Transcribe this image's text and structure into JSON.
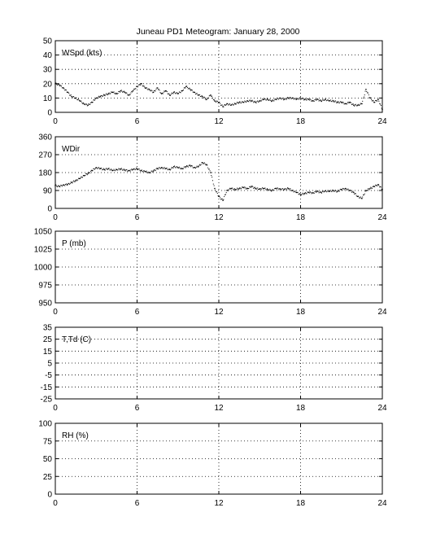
{
  "title": "Juneau PD1 Meteogram:   January 28, 2000",
  "chart_data": [
    {
      "type": "scatter",
      "label": "WSpd (kts)",
      "xlim": [
        0,
        24
      ],
      "xticks": [
        "0",
        "6",
        "12",
        "18",
        "24"
      ],
      "ylim": [
        0,
        50
      ],
      "yticks": [
        "0",
        "10",
        "20",
        "30",
        "40",
        "50"
      ],
      "grid": true,
      "series": [
        {
          "x": [
            0,
            0.3,
            0.6,
            0.9,
            1.2,
            1.5,
            1.8,
            2.1,
            2.4,
            2.7,
            3.0,
            3.3,
            3.6,
            3.9,
            4.2,
            4.5,
            4.8,
            5.1,
            5.4,
            5.7,
            6.0,
            6.3,
            6.6,
            6.9,
            7.2,
            7.5,
            7.8,
            8.1,
            8.4,
            8.7,
            9.0,
            9.3,
            9.6,
            9.9,
            10.2,
            10.5,
            10.8,
            11.1,
            11.4,
            11.7,
            12.0,
            12.3,
            12.6,
            12.9,
            13.2,
            13.5,
            13.8,
            14.1,
            14.4,
            14.7,
            15.0,
            15.3,
            15.6,
            15.9,
            16.2,
            16.5,
            16.8,
            17.1,
            17.4,
            17.7,
            18.0,
            18.3,
            18.6,
            18.9,
            19.2,
            19.5,
            19.8,
            20.1,
            20.4,
            20.7,
            21.0,
            21.3,
            21.6,
            21.9,
            22.2,
            22.5,
            22.8,
            23.1,
            23.4,
            23.7,
            24.0
          ],
          "y": [
            20,
            19,
            17,
            14,
            11,
            10,
            8,
            6,
            5,
            7,
            10,
            11,
            12,
            13,
            14,
            13,
            15,
            14,
            12,
            15,
            18,
            20,
            17,
            16,
            14,
            17,
            13,
            15,
            12,
            14,
            13,
            15,
            18,
            16,
            14,
            12,
            11,
            9,
            12,
            8,
            7,
            4,
            6,
            5,
            6,
            7,
            7,
            8,
            8,
            7,
            8,
            9,
            9,
            8,
            9,
            10,
            9,
            10,
            10,
            9,
            10,
            9,
            9,
            8,
            9,
            8,
            9,
            8,
            8,
            7,
            7,
            6,
            7,
            5,
            5,
            6,
            16,
            10,
            7,
            9,
            2
          ]
        }
      ]
    },
    {
      "type": "scatter",
      "label": "WDir",
      "xlim": [
        0,
        24
      ],
      "xticks": [
        "0",
        "6",
        "12",
        "18",
        "24"
      ],
      "ylim": [
        0,
        360
      ],
      "yticks": [
        "0",
        "90",
        "180",
        "270",
        "360"
      ],
      "grid": true,
      "series": [
        {
          "x": [
            0,
            0.3,
            0.6,
            0.9,
            1.2,
            1.5,
            1.8,
            2.1,
            2.4,
            2.7,
            3.0,
            3.3,
            3.6,
            3.9,
            4.2,
            4.5,
            4.8,
            5.1,
            5.4,
            5.7,
            6.0,
            6.3,
            6.6,
            6.9,
            7.2,
            7.5,
            7.8,
            8.1,
            8.4,
            8.7,
            9.0,
            9.3,
            9.6,
            9.9,
            10.2,
            10.5,
            10.8,
            11.1,
            11.4,
            11.7,
            12.0,
            12.3,
            12.6,
            12.9,
            13.2,
            13.5,
            13.8,
            14.1,
            14.4,
            14.7,
            15.0,
            15.3,
            15.6,
            15.9,
            16.2,
            16.5,
            16.8,
            17.1,
            17.4,
            17.7,
            18.0,
            18.3,
            18.6,
            18.9,
            19.2,
            19.5,
            19.8,
            20.1,
            20.4,
            20.7,
            21.0,
            21.3,
            21.6,
            21.9,
            22.2,
            22.5,
            22.8,
            23.1,
            23.4,
            23.7,
            24.0
          ],
          "y": [
            115,
            110,
            118,
            120,
            130,
            140,
            150,
            165,
            175,
            190,
            205,
            200,
            195,
            200,
            190,
            195,
            198,
            192,
            190,
            195,
            200,
            190,
            185,
            180,
            188,
            200,
            205,
            200,
            195,
            210,
            205,
            200,
            210,
            215,
            205,
            210,
            230,
            220,
            180,
            100,
            60,
            40,
            90,
            100,
            95,
            100,
            105,
            100,
            110,
            100,
            98,
            100,
            95,
            90,
            100,
            98,
            95,
            100,
            90,
            80,
            70,
            75,
            80,
            78,
            85,
            80,
            88,
            85,
            90,
            85,
            95,
            100,
            90,
            80,
            60,
            50,
            90,
            100,
            110,
            120,
            95
          ]
        }
      ]
    },
    {
      "type": "scatter",
      "label": "P (mb)",
      "xlim": [
        0,
        24
      ],
      "xticks": [
        "0",
        "6",
        "12",
        "18",
        "24"
      ],
      "ylim": [
        950,
        1050
      ],
      "yticks": [
        "950",
        "975",
        "1000",
        "1025",
        "1050"
      ],
      "grid": true,
      "series": []
    },
    {
      "type": "scatter",
      "label": "T,Td (C)",
      "xlim": [
        0,
        24
      ],
      "xticks": [
        "0",
        "6",
        "12",
        "18",
        "24"
      ],
      "ylim": [
        -25,
        35
      ],
      "yticks": [
        "-25",
        "-15",
        "-5",
        "5",
        "15",
        "25",
        "35"
      ],
      "grid": true,
      "series": []
    },
    {
      "type": "scatter",
      "label": "RH (%)",
      "xlim": [
        0,
        24
      ],
      "xticks": [
        "0",
        "6",
        "12",
        "18",
        "24"
      ],
      "ylim": [
        0,
        100
      ],
      "yticks": [
        "0",
        "25",
        "50",
        "75",
        "100"
      ],
      "grid": true,
      "series": []
    }
  ]
}
